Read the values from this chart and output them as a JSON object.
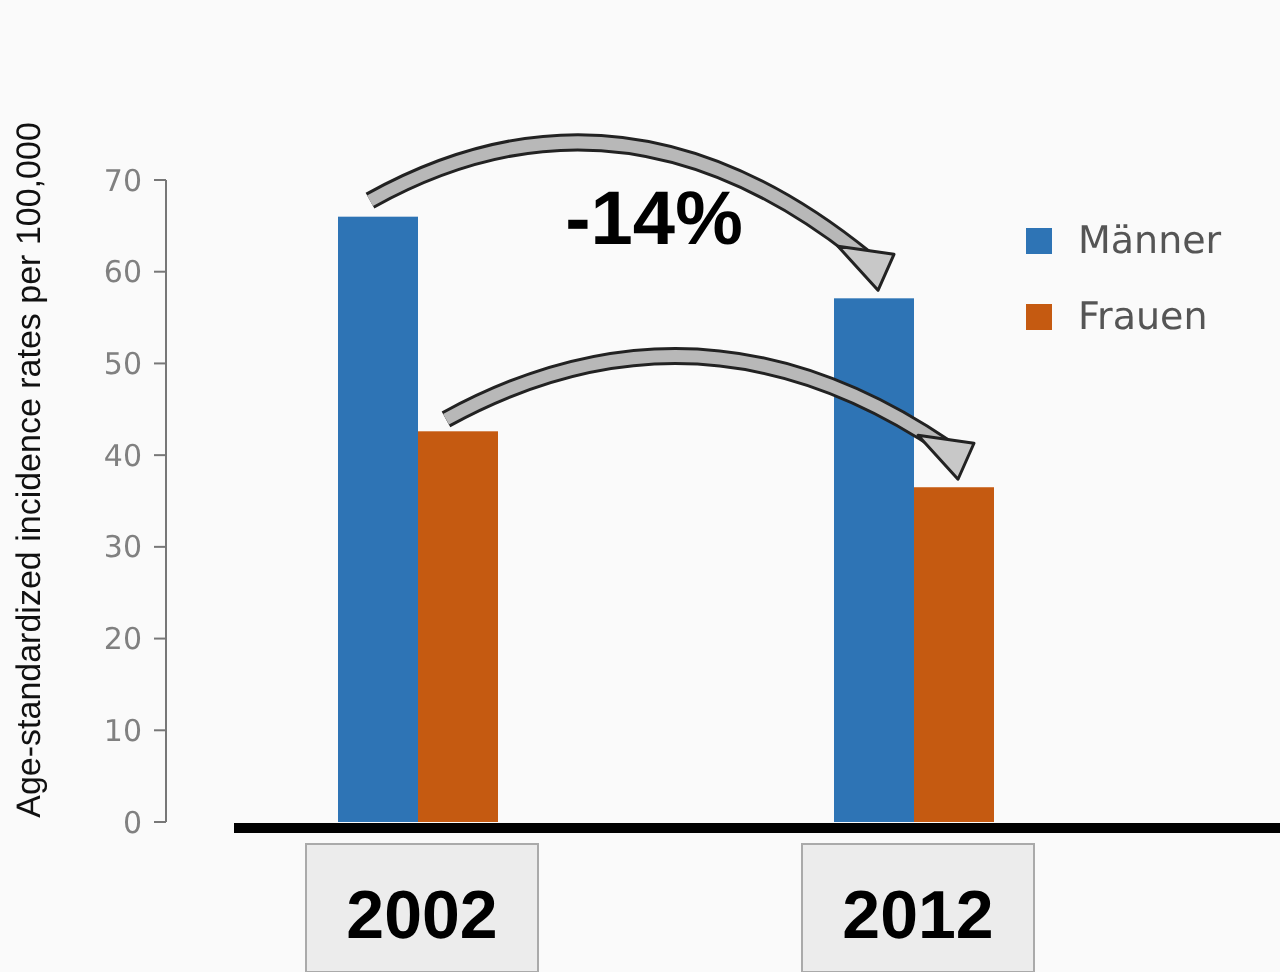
{
  "chart_data": {
    "type": "bar",
    "ylabel": "Age-standardized incidence rates per 100,000",
    "categories": [
      "2002",
      "2012"
    ],
    "series": [
      {
        "name": "Männer",
        "color": "#2e74b5",
        "values": [
          66,
          57.1
        ]
      },
      {
        "name": "Frauen",
        "color": "#c55a11",
        "values": [
          42.6,
          36.5
        ]
      }
    ],
    "ylim": [
      0,
      70
    ],
    "yticks": [
      0,
      10,
      20,
      30,
      40,
      50,
      60,
      70
    ],
    "annotations": [
      "-14%"
    ],
    "legend": "right"
  }
}
